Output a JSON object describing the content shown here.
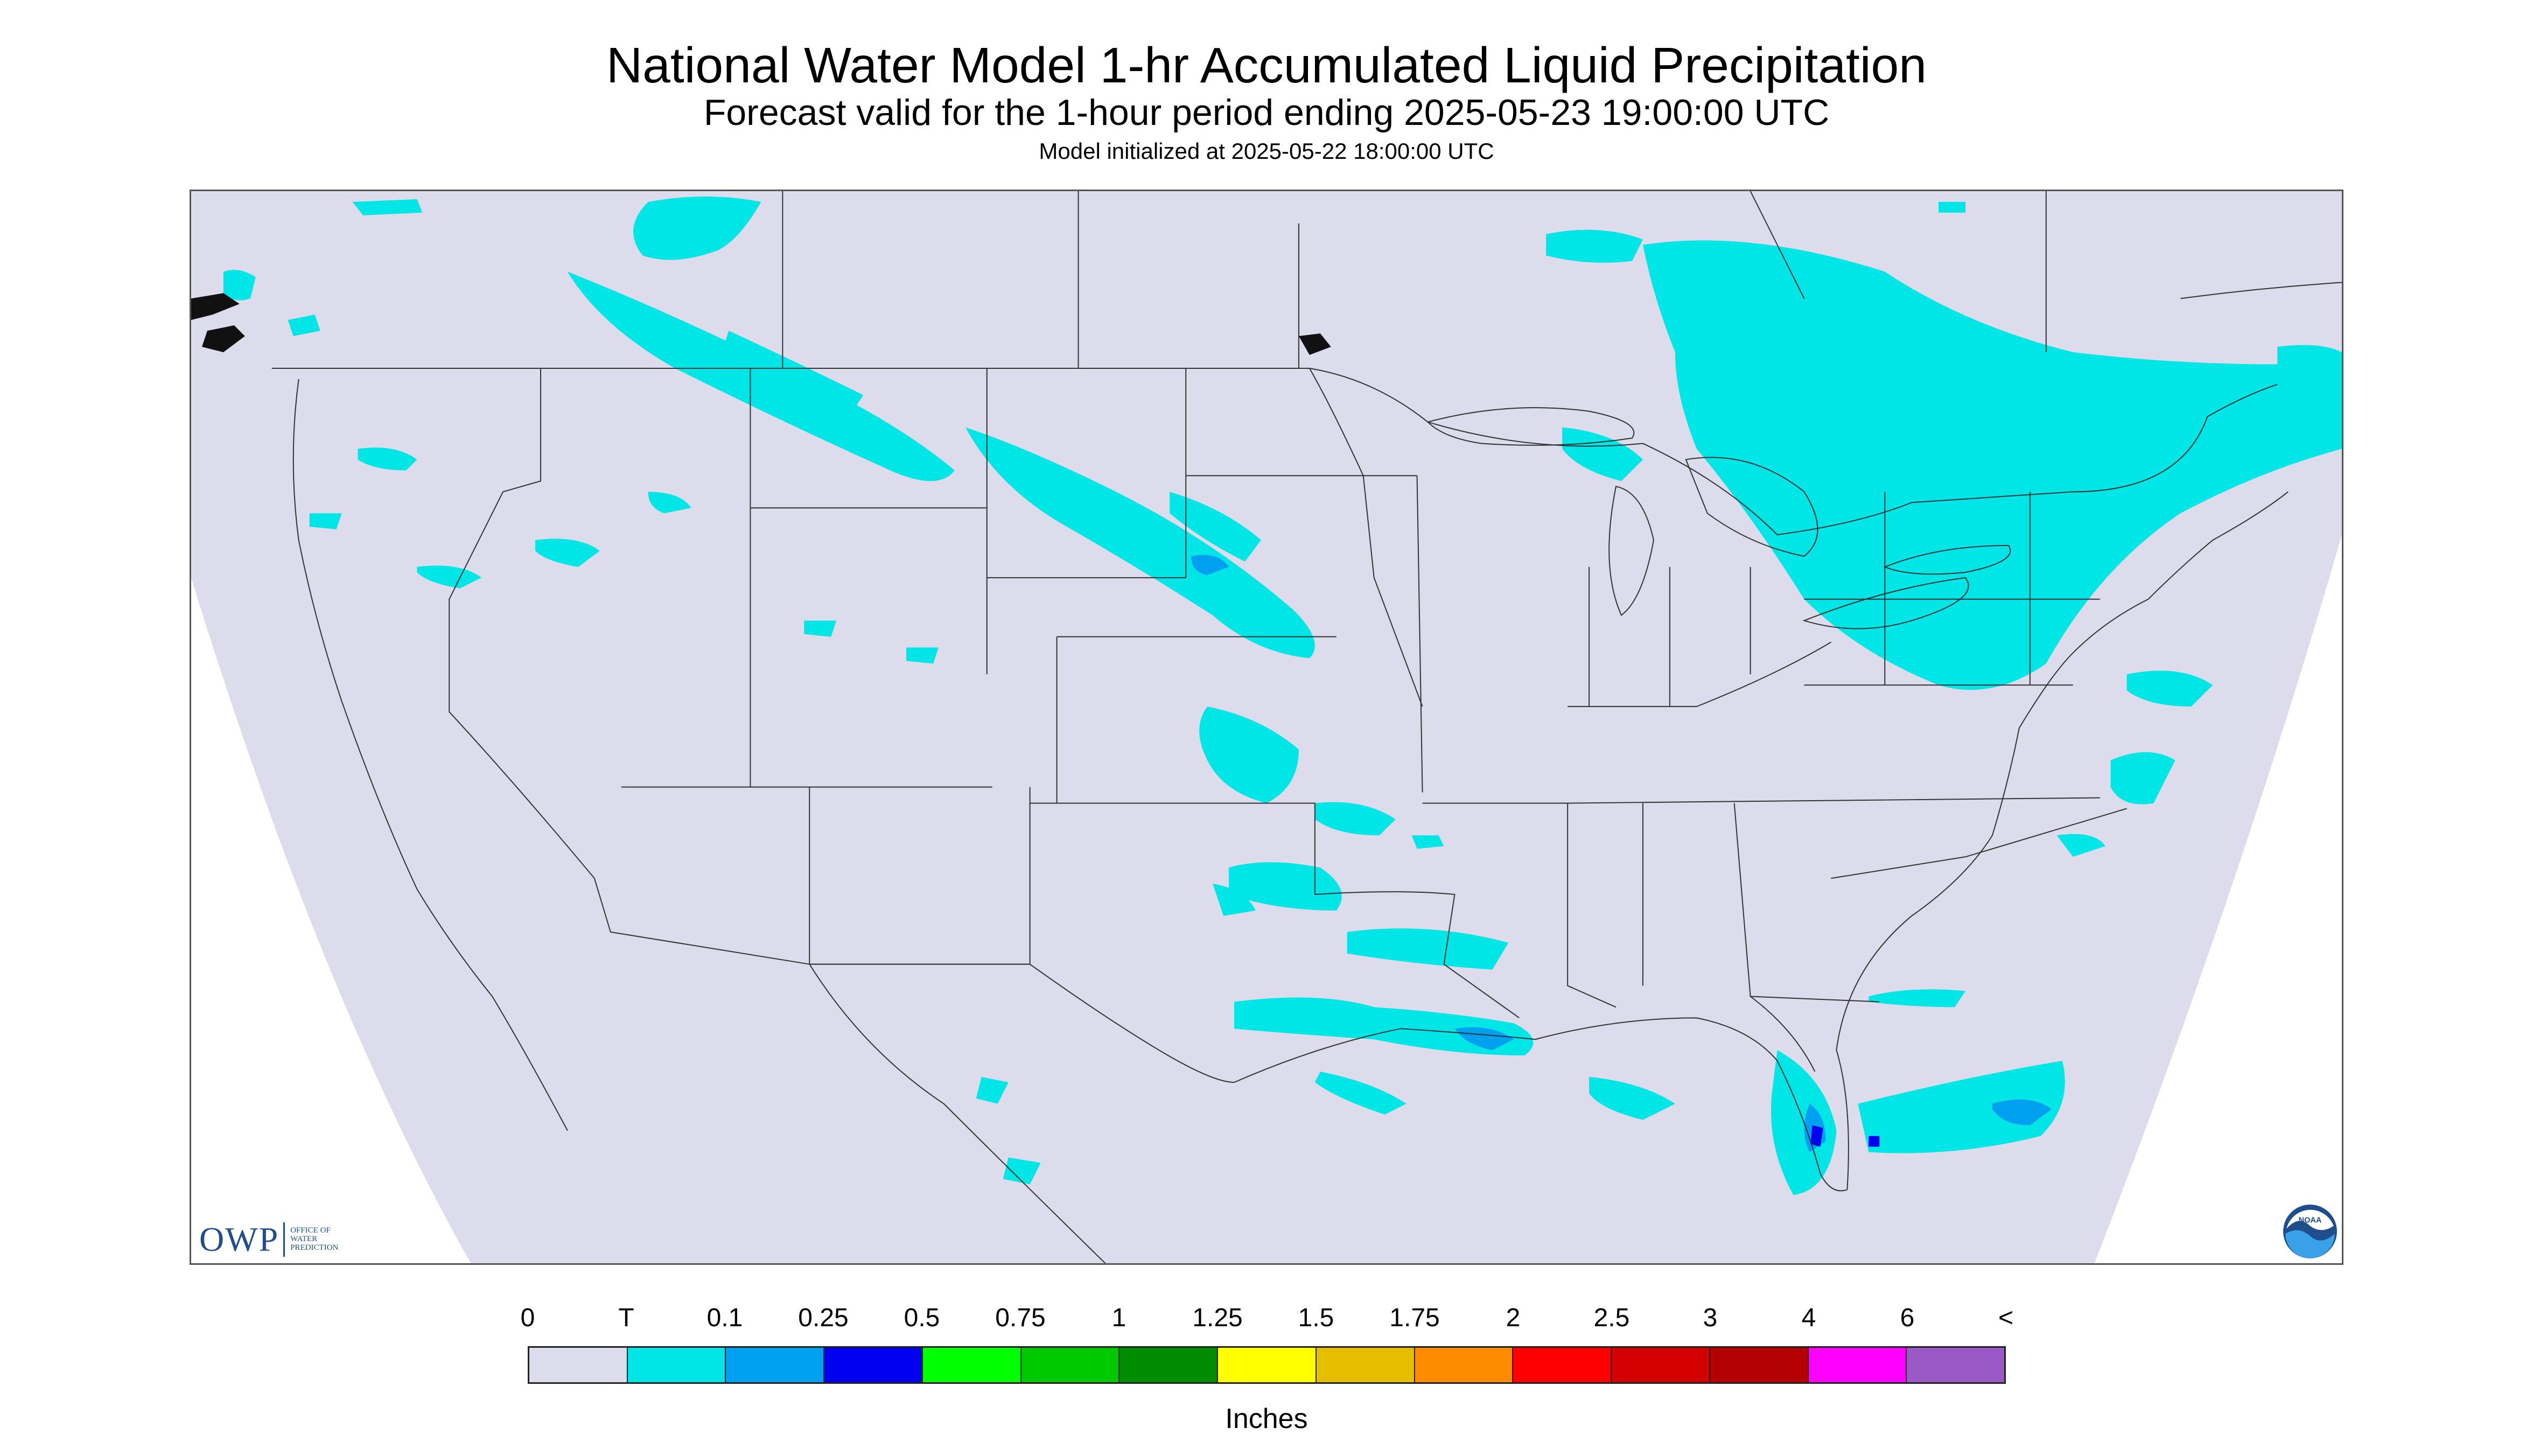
{
  "title": "National Water Model 1-hr Accumulated Liquid Precipitation",
  "subtitle": "Forecast valid for the 1-hour period ending 2025-05-23 19:00:00 UTC",
  "init_text": "Model initialized at 2025-05-22 18:00:00 UTC",
  "logos": {
    "owp_main": "OWP",
    "owp_line1": "OFFICE OF",
    "owp_line2": "WATER",
    "owp_line3": "PREDICTION",
    "noaa_text": "NOAA"
  },
  "legend": {
    "labels": [
      "0",
      "T",
      "0.1",
      "0.25",
      "0.5",
      "0.75",
      "1",
      "1.25",
      "1.5",
      "1.75",
      "2",
      "2.5",
      "3",
      "4",
      "6",
      "<"
    ],
    "colors": [
      "#dcdcec",
      "#00e5e5",
      "#00a0f0",
      "#0000f0",
      "#00ff00",
      "#00c800",
      "#008c00",
      "#ffff00",
      "#e6be00",
      "#ff8c00",
      "#ff0000",
      "#d20000",
      "#b40000",
      "#ff00ff",
      "#9b59c8"
    ],
    "units": "Inches"
  },
  "map": {
    "background_color": "#dcdcec",
    "outside_color": "#ffffff",
    "precip_color": "#00e5e5",
    "heavy_color": "#00a0f0",
    "heaviest_color": "#0000f0",
    "boundary_color": "#333333"
  }
}
